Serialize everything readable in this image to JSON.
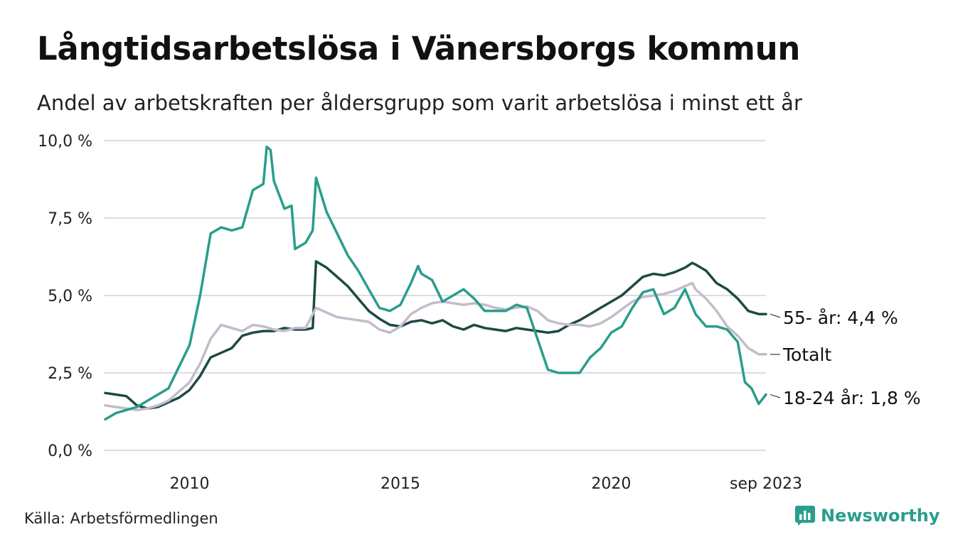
{
  "header": {
    "title": "Långtidsarbetslösa i Vänersborgs kommun",
    "subtitle": "Andel av arbetskraften per åldersgrupp som varit arbetslösa i minst ett år"
  },
  "footer": {
    "source": "Källa: Arbetsförmedlingen",
    "brand": "Newsworthy",
    "brand_icon": "newsworthy-logo-icon",
    "brand_color": "#2a9d8c"
  },
  "chart_data": {
    "type": "line",
    "title": "Långtidsarbetslösa i Vänersborgs kommun",
    "subtitle": "Andel av arbetskraften per åldersgrupp som varit arbetslösa i minst ett år",
    "xlabel": "",
    "ylabel": "",
    "x_range": [
      2008.0,
      2023.67
    ],
    "ylim": [
      0,
      10
    ],
    "y_ticks": [
      0,
      2.5,
      5,
      7.5,
      10
    ],
    "y_tick_labels": [
      "0,0 %",
      "2,5 %",
      "5,0 %",
      "7,5 %",
      "10,0 %"
    ],
    "x_ticks": [
      2010,
      2015,
      2020,
      2023.67
    ],
    "x_tick_labels": [
      "2010",
      "2015",
      "2020",
      "sep 2023"
    ],
    "grid": true,
    "series": [
      {
        "name": "55- år",
        "label": "55- år: 4,4 %",
        "color": "#1d4a42",
        "points": [
          [
            2008.0,
            1.85
          ],
          [
            2008.25,
            1.8
          ],
          [
            2008.5,
            1.75
          ],
          [
            2008.75,
            1.45
          ],
          [
            2009.0,
            1.35
          ],
          [
            2009.25,
            1.4
          ],
          [
            2009.5,
            1.55
          ],
          [
            2009.75,
            1.7
          ],
          [
            2010.0,
            1.95
          ],
          [
            2010.25,
            2.4
          ],
          [
            2010.5,
            3.0
          ],
          [
            2010.75,
            3.15
          ],
          [
            2011.0,
            3.3
          ],
          [
            2011.25,
            3.7
          ],
          [
            2011.5,
            3.8
          ],
          [
            2011.75,
            3.85
          ],
          [
            2012.0,
            3.85
          ],
          [
            2012.25,
            3.95
          ],
          [
            2012.5,
            3.9
          ],
          [
            2012.75,
            3.9
          ],
          [
            2012.92,
            3.95
          ],
          [
            2013.0,
            6.1
          ],
          [
            2013.25,
            5.9
          ],
          [
            2013.5,
            5.6
          ],
          [
            2013.75,
            5.3
          ],
          [
            2014.0,
            4.9
          ],
          [
            2014.25,
            4.5
          ],
          [
            2014.5,
            4.25
          ],
          [
            2014.75,
            4.05
          ],
          [
            2015.0,
            4.0
          ],
          [
            2015.25,
            4.15
          ],
          [
            2015.5,
            4.2
          ],
          [
            2015.75,
            4.1
          ],
          [
            2016.0,
            4.2
          ],
          [
            2016.25,
            4.0
          ],
          [
            2016.5,
            3.9
          ],
          [
            2016.75,
            4.05
          ],
          [
            2017.0,
            3.95
          ],
          [
            2017.25,
            3.9
          ],
          [
            2017.5,
            3.85
          ],
          [
            2017.75,
            3.95
          ],
          [
            2018.0,
            3.9
          ],
          [
            2018.25,
            3.85
          ],
          [
            2018.5,
            3.8
          ],
          [
            2018.75,
            3.85
          ],
          [
            2019.0,
            4.05
          ],
          [
            2019.25,
            4.2
          ],
          [
            2019.5,
            4.4
          ],
          [
            2019.75,
            4.6
          ],
          [
            2020.0,
            4.8
          ],
          [
            2020.25,
            5.0
          ],
          [
            2020.5,
            5.3
          ],
          [
            2020.75,
            5.6
          ],
          [
            2021.0,
            5.7
          ],
          [
            2021.25,
            5.65
          ],
          [
            2021.5,
            5.75
          ],
          [
            2021.75,
            5.9
          ],
          [
            2021.92,
            6.05
          ],
          [
            2022.0,
            6.0
          ],
          [
            2022.25,
            5.8
          ],
          [
            2022.5,
            5.4
          ],
          [
            2022.75,
            5.2
          ],
          [
            2023.0,
            4.9
          ],
          [
            2023.25,
            4.5
          ],
          [
            2023.5,
            4.4
          ],
          [
            2023.67,
            4.4
          ]
        ]
      },
      {
        "name": "Totalt",
        "label": "Totalt",
        "color": "#c2bccb",
        "points": [
          [
            2008.0,
            1.45
          ],
          [
            2008.25,
            1.4
          ],
          [
            2008.5,
            1.35
          ],
          [
            2008.75,
            1.3
          ],
          [
            2009.0,
            1.35
          ],
          [
            2009.25,
            1.45
          ],
          [
            2009.5,
            1.6
          ],
          [
            2009.75,
            1.9
          ],
          [
            2010.0,
            2.2
          ],
          [
            2010.25,
            2.8
          ],
          [
            2010.5,
            3.6
          ],
          [
            2010.75,
            4.05
          ],
          [
            2011.0,
            3.95
          ],
          [
            2011.25,
            3.85
          ],
          [
            2011.5,
            4.05
          ],
          [
            2011.75,
            4.0
          ],
          [
            2012.0,
            3.9
          ],
          [
            2012.25,
            3.85
          ],
          [
            2012.5,
            3.95
          ],
          [
            2012.75,
            3.95
          ],
          [
            2013.0,
            4.6
          ],
          [
            2013.25,
            4.45
          ],
          [
            2013.5,
            4.3
          ],
          [
            2013.75,
            4.25
          ],
          [
            2014.0,
            4.2
          ],
          [
            2014.25,
            4.15
          ],
          [
            2014.5,
            3.9
          ],
          [
            2014.75,
            3.8
          ],
          [
            2015.0,
            4.0
          ],
          [
            2015.25,
            4.4
          ],
          [
            2015.5,
            4.6
          ],
          [
            2015.75,
            4.75
          ],
          [
            2016.0,
            4.8
          ],
          [
            2016.25,
            4.75
          ],
          [
            2016.5,
            4.7
          ],
          [
            2016.75,
            4.75
          ],
          [
            2017.0,
            4.7
          ],
          [
            2017.25,
            4.6
          ],
          [
            2017.5,
            4.55
          ],
          [
            2017.75,
            4.6
          ],
          [
            2018.0,
            4.65
          ],
          [
            2018.25,
            4.5
          ],
          [
            2018.5,
            4.2
          ],
          [
            2018.75,
            4.1
          ],
          [
            2019.0,
            4.05
          ],
          [
            2019.25,
            4.05
          ],
          [
            2019.5,
            4.0
          ],
          [
            2019.75,
            4.1
          ],
          [
            2020.0,
            4.3
          ],
          [
            2020.25,
            4.55
          ],
          [
            2020.5,
            4.8
          ],
          [
            2020.75,
            4.95
          ],
          [
            2021.0,
            5.0
          ],
          [
            2021.25,
            5.05
          ],
          [
            2021.5,
            5.15
          ],
          [
            2021.75,
            5.3
          ],
          [
            2021.92,
            5.4
          ],
          [
            2022.0,
            5.2
          ],
          [
            2022.25,
            4.9
          ],
          [
            2022.5,
            4.5
          ],
          [
            2022.75,
            4.0
          ],
          [
            2023.0,
            3.7
          ],
          [
            2023.25,
            3.3
          ],
          [
            2023.5,
            3.1
          ],
          [
            2023.67,
            3.1
          ]
        ]
      },
      {
        "name": "18-24 år",
        "label": "18-24 år: 1,8 %",
        "color": "#2a9d8c",
        "points": [
          [
            2008.0,
            1.0
          ],
          [
            2008.25,
            1.2
          ],
          [
            2008.5,
            1.3
          ],
          [
            2008.75,
            1.4
          ],
          [
            2009.0,
            1.6
          ],
          [
            2009.25,
            1.8
          ],
          [
            2009.5,
            2.0
          ],
          [
            2009.75,
            2.7
          ],
          [
            2010.0,
            3.4
          ],
          [
            2010.25,
            5.0
          ],
          [
            2010.5,
            7.0
          ],
          [
            2010.75,
            7.2
          ],
          [
            2011.0,
            7.1
          ],
          [
            2011.25,
            7.2
          ],
          [
            2011.5,
            8.4
          ],
          [
            2011.75,
            8.6
          ],
          [
            2011.83,
            9.8
          ],
          [
            2011.92,
            9.7
          ],
          [
            2012.0,
            8.7
          ],
          [
            2012.25,
            7.8
          ],
          [
            2012.42,
            7.9
          ],
          [
            2012.5,
            6.5
          ],
          [
            2012.75,
            6.7
          ],
          [
            2012.92,
            7.1
          ],
          [
            2013.0,
            8.8
          ],
          [
            2013.25,
            7.7
          ],
          [
            2013.5,
            7.0
          ],
          [
            2013.75,
            6.3
          ],
          [
            2014.0,
            5.8
          ],
          [
            2014.25,
            5.2
          ],
          [
            2014.5,
            4.6
          ],
          [
            2014.75,
            4.5
          ],
          [
            2015.0,
            4.7
          ],
          [
            2015.25,
            5.4
          ],
          [
            2015.42,
            5.95
          ],
          [
            2015.5,
            5.7
          ],
          [
            2015.75,
            5.5
          ],
          [
            2016.0,
            4.8
          ],
          [
            2016.25,
            5.0
          ],
          [
            2016.5,
            5.2
          ],
          [
            2016.75,
            4.9
          ],
          [
            2017.0,
            4.5
          ],
          [
            2017.25,
            4.5
          ],
          [
            2017.5,
            4.5
          ],
          [
            2017.75,
            4.7
          ],
          [
            2018.0,
            4.6
          ],
          [
            2018.25,
            3.6
          ],
          [
            2018.5,
            2.6
          ],
          [
            2018.75,
            2.5
          ],
          [
            2019.0,
            2.5
          ],
          [
            2019.25,
            2.5
          ],
          [
            2019.5,
            3.0
          ],
          [
            2019.75,
            3.3
          ],
          [
            2020.0,
            3.8
          ],
          [
            2020.25,
            4.0
          ],
          [
            2020.5,
            4.6
          ],
          [
            2020.75,
            5.1
          ],
          [
            2021.0,
            5.2
          ],
          [
            2021.25,
            4.4
          ],
          [
            2021.5,
            4.6
          ],
          [
            2021.75,
            5.2
          ],
          [
            2022.0,
            4.4
          ],
          [
            2022.25,
            4.0
          ],
          [
            2022.5,
            4.0
          ],
          [
            2022.75,
            3.9
          ],
          [
            2023.0,
            3.5
          ],
          [
            2023.17,
            2.2
          ],
          [
            2023.33,
            2.0
          ],
          [
            2023.5,
            1.5
          ],
          [
            2023.67,
            1.8
          ]
        ]
      }
    ]
  }
}
